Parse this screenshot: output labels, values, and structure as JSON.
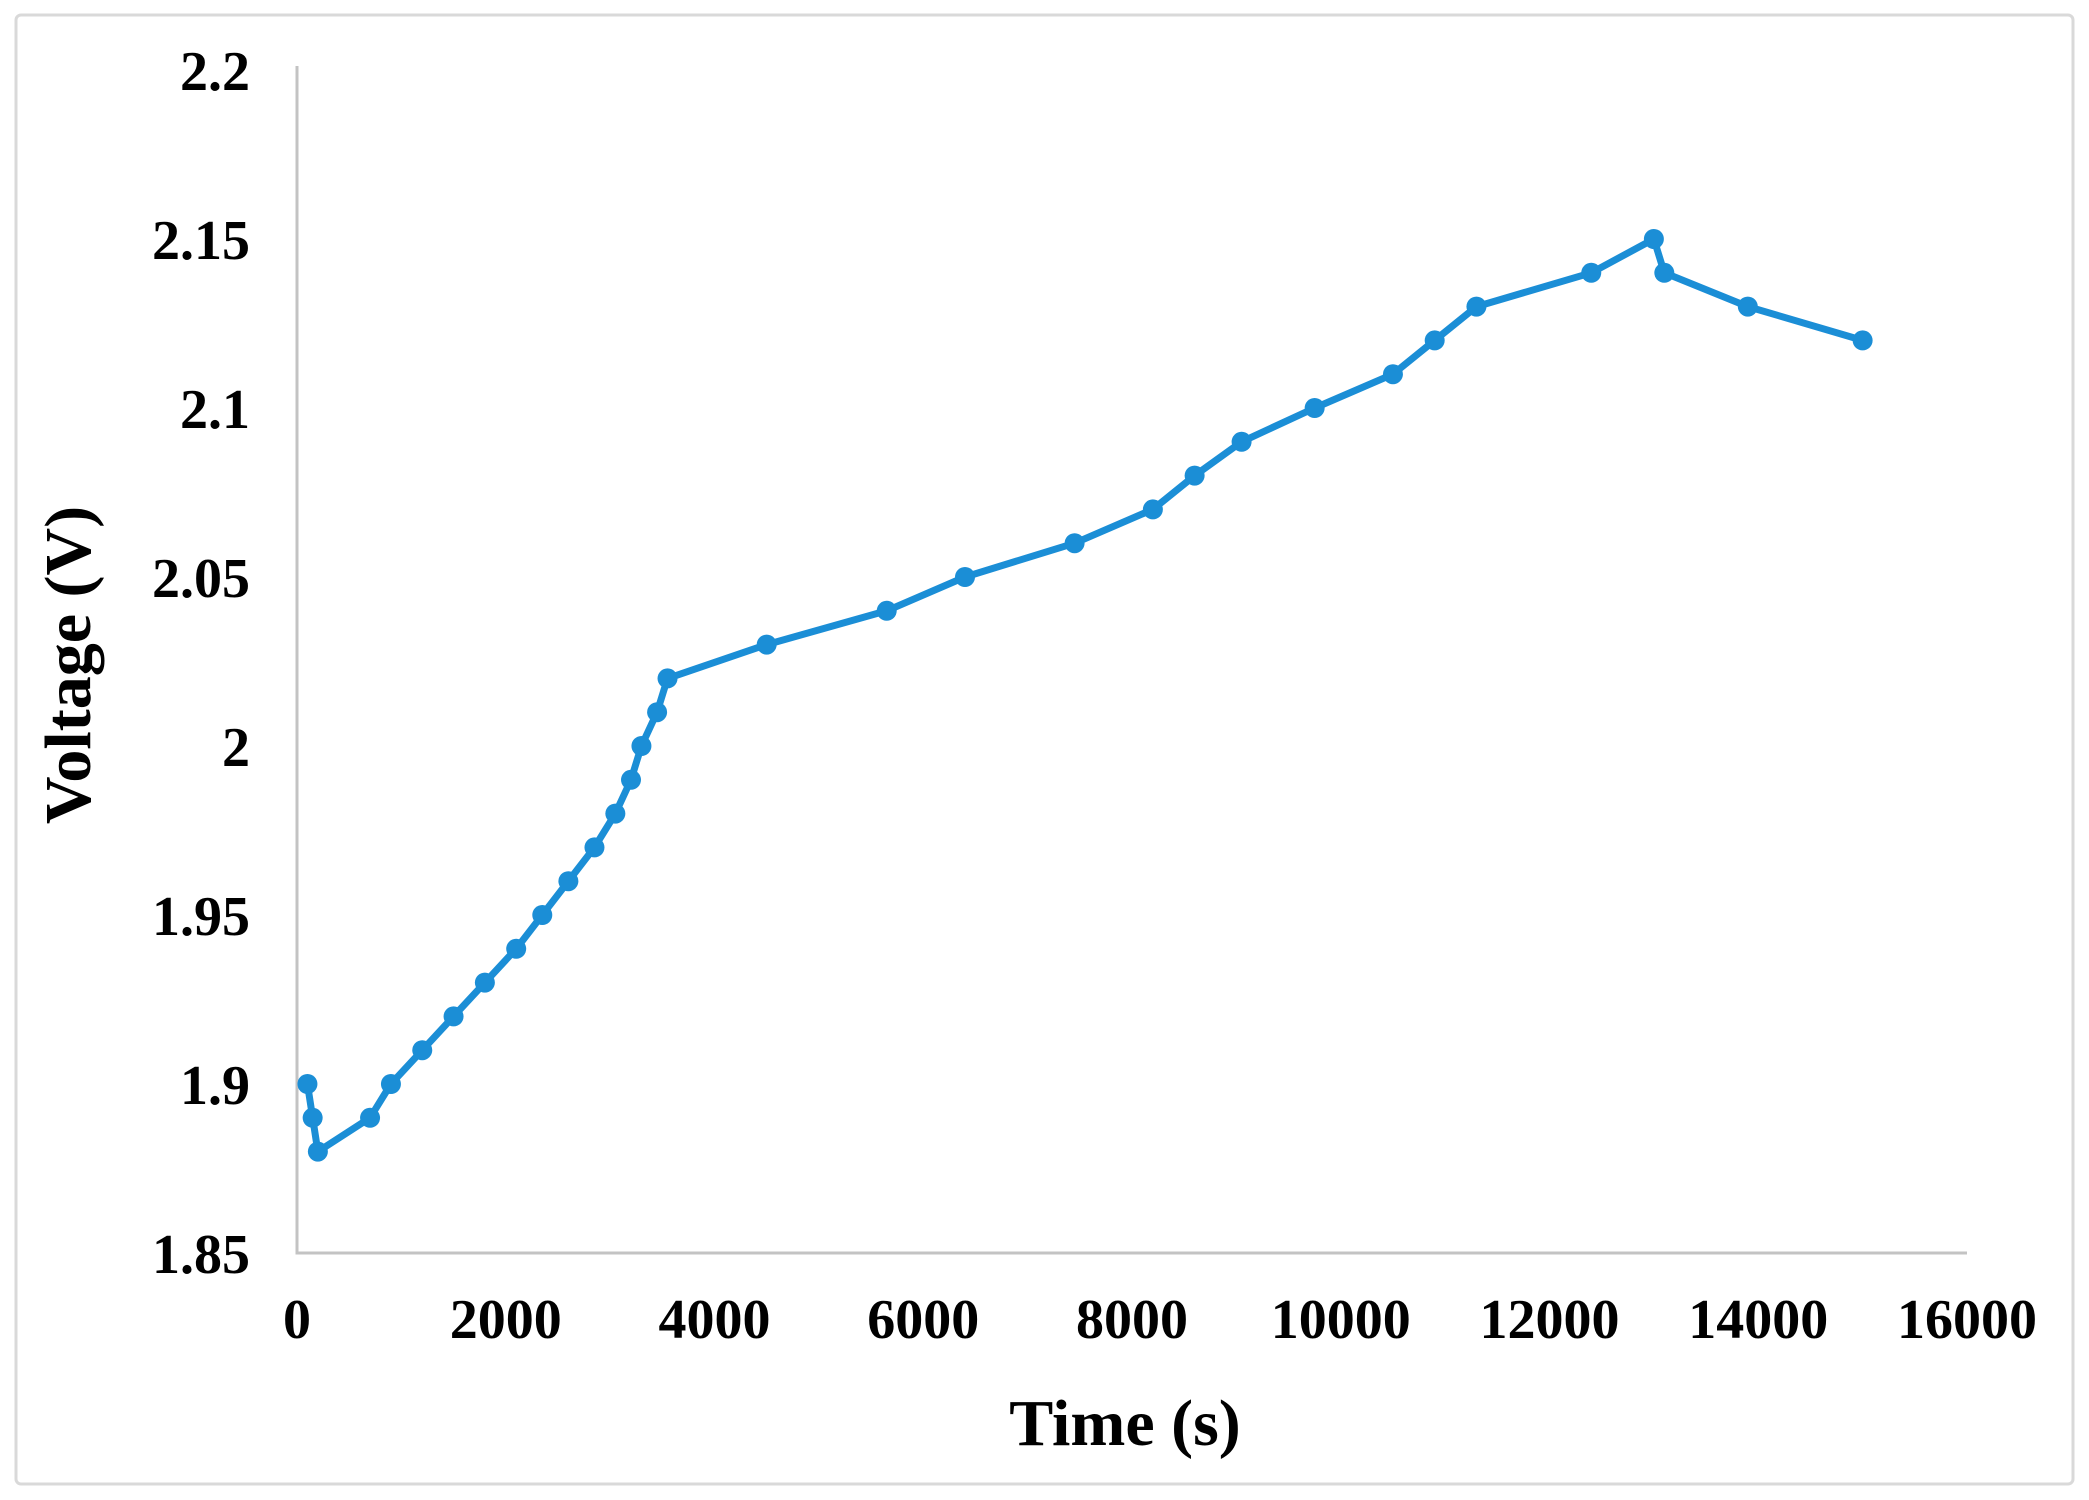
{
  "figure": {
    "background": "#ffffff"
  },
  "chart_data": {
    "type": "line",
    "title": "",
    "xlabel": "Time (s)",
    "ylabel": "Voltage (V)",
    "xlim": [
      0,
      16000
    ],
    "ylim": [
      1.85,
      2.2
    ],
    "grid": false,
    "legend": "none",
    "marker": "circle",
    "colors": {
      "series": "#1b8ed6",
      "axis_line": "#c3c3c3",
      "figure_border": "#d9d9d9",
      "text": "#000000",
      "background": "#ffffff"
    },
    "x_ticks": [
      {
        "value": 0,
        "label": "0"
      },
      {
        "value": 2000,
        "label": "2000"
      },
      {
        "value": 4000,
        "label": "4000"
      },
      {
        "value": 6000,
        "label": "6000"
      },
      {
        "value": 8000,
        "label": "8000"
      },
      {
        "value": 10000,
        "label": "10000"
      },
      {
        "value": 12000,
        "label": "12000"
      },
      {
        "value": 14000,
        "label": "14000"
      },
      {
        "value": 16000,
        "label": "16000"
      }
    ],
    "y_ticks": [
      {
        "value": 1.85,
        "label": "1.85"
      },
      {
        "value": 1.9,
        "label": "1.9"
      },
      {
        "value": 1.95,
        "label": "1.95"
      },
      {
        "value": 2.0,
        "label": "2"
      },
      {
        "value": 2.05,
        "label": "2.05"
      },
      {
        "value": 2.1,
        "label": "2.1"
      },
      {
        "value": 2.15,
        "label": "2.15"
      },
      {
        "value": 2.2,
        "label": "2.2"
      }
    ],
    "series": [
      {
        "name": "Voltage",
        "x": [
          100,
          150,
          200,
          700,
          900,
          1200,
          1500,
          1800,
          2100,
          2350,
          2600,
          2850,
          3050,
          3200,
          3300,
          3450,
          3550,
          4500,
          5650,
          6400,
          7450,
          8200,
          8600,
          9050,
          9750,
          10500,
          10900,
          11300,
          12400,
          13000,
          13100,
          13900,
          15000
        ],
        "y": [
          1.9,
          1.89,
          1.88,
          1.89,
          1.9,
          1.91,
          1.92,
          1.93,
          1.94,
          1.95,
          1.96,
          1.97,
          1.98,
          1.99,
          2.0,
          2.01,
          2.02,
          2.03,
          2.04,
          2.05,
          2.06,
          2.07,
          2.08,
          2.09,
          2.1,
          2.11,
          2.12,
          2.13,
          2.14,
          2.15,
          2.14,
          2.13,
          2.12
        ]
      }
    ]
  }
}
